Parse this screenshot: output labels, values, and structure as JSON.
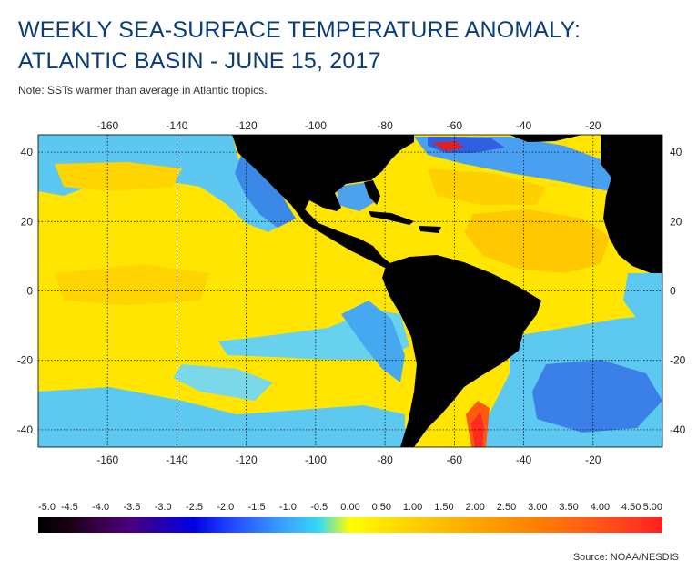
{
  "header": {
    "title_line1": "WEEKLY SEA-SURFACE TEMPERATURE ANOMALY:",
    "title_line2": "ATLANTIC BASIN - JUNE 15, 2017",
    "note": "Note: SSTs warmer than average in Atlantic tropics."
  },
  "map": {
    "longitude_ticks": [
      "-160",
      "-140",
      "-120",
      "-100",
      "-80",
      "-60",
      "-40",
      "-20"
    ],
    "latitude_ticks": [
      "40",
      "20",
      "0",
      "-20",
      "-40"
    ],
    "grid": true,
    "land_color": "#000000"
  },
  "color_scale": {
    "labels": [
      "-5.0",
      "-4.5",
      "-4.0",
      "-3.5",
      "-3.0",
      "-2.5",
      "-2.0",
      "-1.5",
      "-1.0",
      "-0.5",
      "0.00",
      "0.50",
      "1.00",
      "1.50",
      "2.00",
      "2.50",
      "3.00",
      "3.50",
      "4.00",
      "4.50",
      "5.00"
    ],
    "colors": [
      "#000000",
      "#1a0014",
      "#3b0048",
      "#4a0080",
      "#2000b0",
      "#0000e6",
      "#1f3cff",
      "#2f74ff",
      "#3aa8ff",
      "#38d8f5",
      "#ffff00",
      "#ffe600",
      "#ffd000",
      "#ffbb00",
      "#ffa600",
      "#ff9200",
      "#ff7e00",
      "#ff6a10",
      "#ff5418",
      "#ff3c20",
      "#ff2020"
    ]
  },
  "footer": {
    "source": "Source: NOAA/NESDIS"
  }
}
